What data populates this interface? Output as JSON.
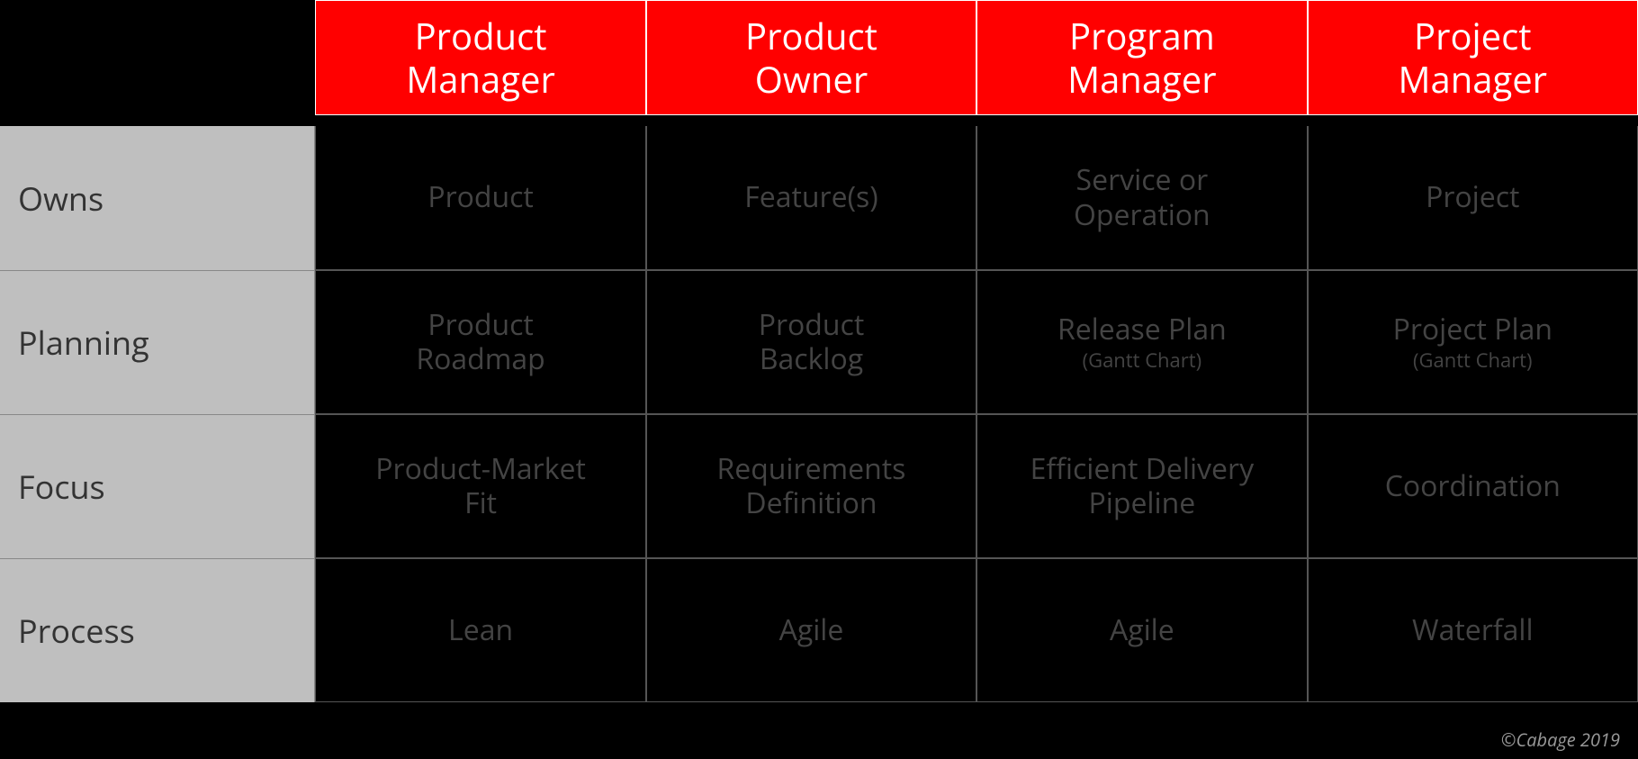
{
  "table": {
    "type": "table",
    "colors": {
      "header_bg": "#ff0000",
      "header_text": "#ffffff",
      "row_header_bg": "#bfbfbf",
      "row_header_text": "#333333",
      "data_bg": "#000000",
      "data_text": "#444444",
      "page_bg": "#000000",
      "grid_color": "#555555"
    },
    "typography": {
      "header_fontsize": 40,
      "row_header_fontsize": 36,
      "data_fontsize": 32,
      "sub_fontsize": 22,
      "font_family": "Open Sans"
    },
    "columns": [
      "Product Manager",
      "Product Owner",
      "Program Manager",
      "Project Manager"
    ],
    "row_headers": [
      "Owns",
      "Planning",
      "Focus",
      "Process"
    ],
    "rows": [
      {
        "cells": [
          {
            "main": "Product"
          },
          {
            "main": "Feature(s)"
          },
          {
            "main": "Service or Operation"
          },
          {
            "main": "Project"
          }
        ]
      },
      {
        "cells": [
          {
            "main": "Product Roadmap"
          },
          {
            "main": "Product Backlog"
          },
          {
            "main": "Release Plan",
            "sub": "(Gantt Chart)"
          },
          {
            "main": "Project  Plan",
            "sub": "(Gantt Chart)"
          }
        ]
      },
      {
        "cells": [
          {
            "main": "Product-Market Fit"
          },
          {
            "main": "Requirements Definition"
          },
          {
            "main": "Efficient Delivery Pipeline"
          },
          {
            "main": "Coordination"
          }
        ]
      },
      {
        "cells": [
          {
            "main": "Lean"
          },
          {
            "main": "Agile"
          },
          {
            "main": "Agile"
          },
          {
            "main": "Waterfall"
          }
        ]
      }
    ]
  },
  "attribution": "©Cabage 2019"
}
